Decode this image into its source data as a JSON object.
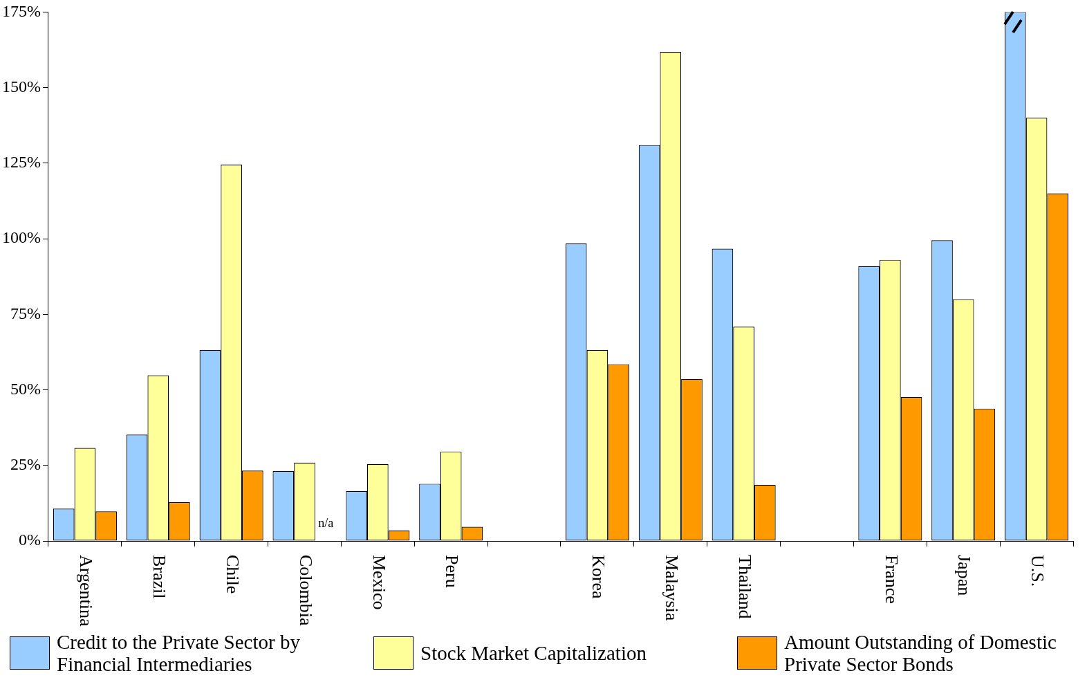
{
  "chart_data": {
    "type": "bar",
    "categories": [
      "Argentina",
      "Brazil",
      "Chile",
      "Colombia",
      "Mexico",
      "Peru",
      null,
      "Korea",
      "Malaysia",
      "Thailand",
      null,
      "France",
      "Japan",
      "U.S."
    ],
    "series": [
      {
        "name": "Credit to the Private Sector by Financial Intermediaries",
        "color": "#99ccff",
        "values": [
          10.7,
          35.2,
          63.2,
          23.1,
          16.5,
          18.9,
          null,
          98.4,
          131,
          96.7,
          null,
          90.9,
          99.5,
          175
        ]
      },
      {
        "name": "Stock Market Capitalization",
        "color": "#ffff99",
        "values": [
          30.8,
          54.8,
          124.5,
          25.9,
          25.4,
          29.6,
          null,
          63.2,
          161.8,
          70.9,
          null,
          93,
          80,
          140
        ]
      },
      {
        "name": "Amount Outstanding of Domestic Private Sector Bonds",
        "color": "#ff9900",
        "values": [
          9.8,
          12.8,
          23.3,
          null,
          3.5,
          4.7,
          null,
          58.5,
          53.6,
          18.6,
          null,
          47.6,
          43.8,
          115
        ]
      }
    ],
    "ylim": [
      0,
      175
    ],
    "yticks": [
      {
        "value": 0,
        "label": "0%"
      },
      {
        "value": 25,
        "label": "25%"
      },
      {
        "value": 50,
        "label": "50%"
      },
      {
        "value": 75,
        "label": "75%"
      },
      {
        "value": 100,
        "label": "100%"
      },
      {
        "value": 125,
        "label": "125%"
      },
      {
        "value": 150,
        "label": "150%"
      },
      {
        "value": 175,
        "label": "175%"
      }
    ],
    "annotations": [
      {
        "text": "n/a",
        "x": "Colombia",
        "y": 0
      }
    ],
    "grid": false,
    "legend": "bottom"
  }
}
